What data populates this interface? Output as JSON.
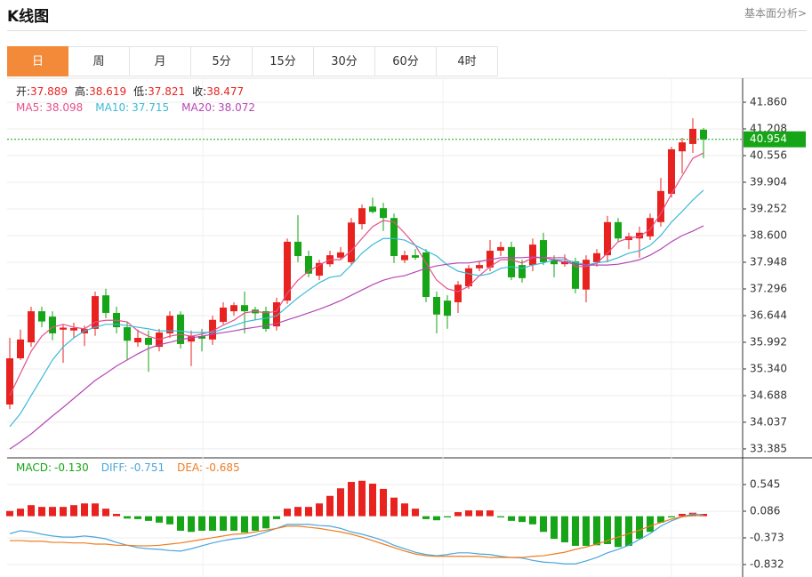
{
  "header": {
    "title": "K线图",
    "link": "基本面分析>"
  },
  "tabs": [
    "日",
    "周",
    "月",
    "5分",
    "15分",
    "30分",
    "60分",
    "4时"
  ],
  "chart_data": [
    {
      "type": "candlestick",
      "readout": [
        {
          "label": "开:",
          "value": "37.889"
        },
        {
          "label": "高:",
          "value": "38.619"
        },
        {
          "label": "低:",
          "value": "37.821"
        },
        {
          "label": "收:",
          "value": "38.477"
        }
      ],
      "up_color": "#e8231f",
      "down_color": "#16a516",
      "open": [
        34.47,
        35.6,
        35.99,
        36.75,
        36.62,
        36.3,
        36.28,
        36.21,
        36.32,
        37.14,
        36.71,
        36.36,
        35.99,
        36.1,
        35.88,
        36.21,
        36.67,
        36.01,
        36.14,
        36.06,
        36.49,
        36.75,
        36.9,
        36.79,
        36.75,
        36.38,
        37.01,
        38.45,
        38.1,
        37.62,
        37.9,
        38.06,
        37.95,
        38.88,
        39.31,
        39.27,
        39.03,
        38.0,
        38.12,
        38.19,
        37.1,
        37.01,
        36.97,
        37.36,
        37.8,
        37.82,
        38.23,
        38.32,
        37.88,
        37.88,
        38.49,
        37.99,
        37.9,
        37.97,
        37.28,
        37.95,
        38.12,
        38.93,
        38.49,
        38.53,
        38.58,
        38.93,
        39.62,
        40.66,
        40.84,
        41.19
      ],
      "high": [
        36.1,
        36.3,
        36.86,
        36.86,
        36.75,
        36.43,
        36.47,
        36.4,
        37.23,
        37.3,
        36.86,
        36.49,
        36.3,
        36.28,
        36.32,
        36.75,
        36.75,
        36.28,
        36.32,
        36.64,
        36.97,
        36.97,
        37.23,
        36.86,
        36.86,
        37.08,
        38.53,
        39.1,
        38.23,
        38.01,
        38.23,
        38.32,
        39.03,
        39.36,
        39.53,
        39.4,
        39.14,
        38.23,
        38.27,
        38.27,
        37.23,
        37.14,
        37.49,
        37.88,
        37.97,
        38.49,
        38.45,
        38.45,
        38.01,
        38.53,
        38.67,
        38.12,
        38.14,
        38.06,
        38.12,
        38.27,
        39.08,
        39.03,
        38.67,
        38.82,
        39.14,
        40.01,
        40.77,
        40.99,
        41.47,
        41.23
      ],
      "low": [
        34.36,
        35.56,
        35.88,
        36.36,
        36.04,
        35.49,
        36.1,
        35.9,
        36.15,
        36.58,
        36.21,
        35.56,
        35.88,
        35.27,
        35.77,
        36.1,
        35.84,
        35.41,
        35.77,
        35.93,
        36.43,
        36.64,
        36.21,
        36.53,
        36.25,
        36.28,
        36.93,
        37.95,
        37.58,
        37.51,
        37.84,
        38.01,
        37.88,
        38.75,
        39.14,
        38.71,
        37.93,
        37.93,
        38.01,
        36.97,
        36.21,
        36.32,
        36.71,
        37.3,
        37.73,
        37.73,
        38.1,
        37.51,
        37.45,
        37.73,
        37.88,
        37.58,
        37.84,
        37.19,
        36.97,
        37.84,
        37.95,
        38.45,
        38.27,
        38.06,
        38.49,
        38.82,
        39.53,
        40.12,
        40.62,
        40.49
      ],
      "close": [
        35.6,
        36.06,
        36.75,
        36.5,
        36.21,
        36.35,
        36.34,
        36.32,
        37.12,
        36.71,
        36.36,
        36.03,
        36.1,
        35.93,
        36.23,
        36.64,
        35.95,
        36.14,
        36.08,
        36.54,
        36.84,
        36.9,
        36.75,
        36.7,
        36.32,
        36.97,
        38.45,
        38.1,
        37.67,
        37.93,
        38.12,
        38.19,
        38.92,
        39.27,
        39.18,
        39.03,
        38.1,
        38.12,
        38.06,
        37.1,
        36.67,
        36.64,
        37.4,
        37.8,
        37.88,
        38.23,
        38.32,
        37.58,
        37.56,
        38.38,
        37.95,
        37.9,
        37.97,
        37.3,
        38.01,
        38.17,
        38.93,
        38.53,
        38.58,
        38.67,
        39.03,
        39.69,
        40.71,
        40.88,
        41.21,
        40.954
      ],
      "series": [
        {
          "name": "MA5:",
          "last": "38.098",
          "color": "#e6508a",
          "values": [
            34.69,
            35.23,
            35.77,
            36.14,
            36.36,
            36.43,
            36.36,
            36.32,
            36.49,
            36.53,
            36.53,
            36.49,
            36.27,
            36.14,
            36.06,
            36.14,
            36.19,
            36.14,
            36.19,
            36.27,
            36.41,
            36.53,
            36.71,
            36.75,
            36.71,
            36.75,
            37.19,
            37.51,
            37.73,
            37.88,
            38.01,
            38.01,
            38.23,
            38.53,
            38.82,
            38.97,
            38.93,
            38.66,
            38.36,
            37.93,
            37.51,
            37.3,
            37.23,
            37.36,
            37.62,
            37.84,
            38.01,
            38.01,
            37.93,
            38.06,
            38.06,
            38.06,
            38.06,
            37.84,
            37.84,
            37.93,
            38.17,
            38.45,
            38.54,
            38.58,
            38.75,
            39.14,
            39.62,
            40.06,
            40.49,
            40.62
          ]
        },
        {
          "name": "MA10:",
          "last": "37.715",
          "color": "#3cb9d8",
          "values": [
            33.93,
            34.25,
            34.69,
            35.12,
            35.56,
            35.88,
            36.1,
            36.27,
            36.36,
            36.43,
            36.43,
            36.4,
            36.36,
            36.32,
            36.27,
            36.27,
            36.27,
            36.23,
            36.23,
            36.23,
            36.32,
            36.4,
            36.49,
            36.54,
            36.58,
            36.64,
            36.86,
            37.08,
            37.27,
            37.45,
            37.58,
            37.62,
            37.88,
            38.17,
            38.38,
            38.53,
            38.53,
            38.49,
            38.36,
            38.23,
            38.1,
            37.88,
            37.73,
            37.67,
            37.62,
            37.67,
            37.8,
            37.84,
            37.8,
            37.88,
            37.93,
            38.01,
            38.01,
            37.95,
            37.88,
            37.93,
            37.97,
            38.06,
            38.17,
            38.23,
            38.36,
            38.6,
            38.93,
            39.19,
            39.47,
            39.71
          ]
        },
        {
          "name": "MA20:",
          "last": "38.072",
          "color": "#b548b5",
          "values": [
            33.38,
            33.56,
            33.75,
            33.97,
            34.19,
            34.4,
            34.62,
            34.84,
            35.06,
            35.23,
            35.41,
            35.56,
            35.71,
            35.84,
            35.93,
            35.99,
            36.06,
            36.1,
            36.14,
            36.19,
            36.23,
            36.27,
            36.32,
            36.36,
            36.4,
            36.45,
            36.54,
            36.62,
            36.71,
            36.8,
            36.9,
            37.01,
            37.14,
            37.27,
            37.4,
            37.51,
            37.58,
            37.62,
            37.71,
            37.8,
            37.86,
            37.9,
            37.93,
            37.93,
            37.97,
            38.01,
            38.06,
            38.06,
            38.06,
            38.08,
            38.06,
            38.01,
            37.95,
            37.9,
            37.88,
            37.88,
            37.88,
            37.9,
            37.95,
            38.01,
            38.12,
            38.27,
            38.45,
            38.6,
            38.71,
            38.84
          ]
        }
      ],
      "last_price": 40.954,
      "last_color": "#16a516",
      "ylim": [
        33.166,
        42.447
      ],
      "yticks": [
        {
          "value": 41.86,
          "label": "41.860"
        },
        {
          "value": 41.208,
          "label": "41.208"
        },
        {
          "value": 40.556,
          "label": "40.556"
        },
        {
          "value": 39.904,
          "label": "39.904"
        },
        {
          "value": 39.252,
          "label": "39.252"
        },
        {
          "value": 38.6,
          "label": "38.600"
        },
        {
          "value": 37.948,
          "label": "37.948"
        },
        {
          "value": 37.296,
          "label": "37.296"
        },
        {
          "value": 36.644,
          "label": "36.644"
        },
        {
          "value": 35.992,
          "label": "35.992"
        },
        {
          "value": 35.34,
          "label": "35.340"
        },
        {
          "value": 34.688,
          "label": "34.688"
        },
        {
          "value": 34.037,
          "label": "34.037"
        },
        {
          "value": 33.385,
          "label": "33.385"
        }
      ],
      "grid": true
    },
    {
      "type": "macd",
      "up_color": "#e8231f",
      "down_color": "#16a516",
      "series": [
        {
          "name": "MACD:",
          "last": "-0.130",
          "kind": "bar",
          "color": "#16a516",
          "values": [
            0.09,
            0.13,
            0.19,
            0.16,
            0.16,
            0.16,
            0.19,
            0.22,
            0.22,
            0.13,
            0.04,
            -0.04,
            -0.05,
            -0.08,
            -0.11,
            -0.14,
            -0.25,
            -0.27,
            -0.25,
            -0.25,
            -0.25,
            -0.25,
            -0.28,
            -0.25,
            -0.21,
            -0.05,
            0.13,
            0.16,
            0.16,
            0.22,
            0.35,
            0.48,
            0.59,
            0.61,
            0.56,
            0.47,
            0.32,
            0.22,
            0.13,
            -0.05,
            -0.07,
            -0.02,
            0.07,
            0.1,
            0.1,
            0.1,
            -0.02,
            -0.08,
            -0.1,
            -0.14,
            -0.27,
            -0.39,
            -0.45,
            -0.51,
            -0.51,
            -0.5,
            -0.48,
            -0.53,
            -0.51,
            -0.39,
            -0.27,
            -0.11,
            -0.02,
            0.04,
            0.06,
            0.04
          ]
        },
        {
          "name": "DIFF:",
          "last": "-0.751",
          "kind": "line",
          "color": "#4aa6dc",
          "values": [
            -0.3,
            -0.25,
            -0.27,
            -0.31,
            -0.34,
            -0.36,
            -0.36,
            -0.34,
            -0.36,
            -0.39,
            -0.45,
            -0.5,
            -0.54,
            -0.56,
            -0.57,
            -0.59,
            -0.6,
            -0.56,
            -0.51,
            -0.46,
            -0.42,
            -0.39,
            -0.37,
            -0.33,
            -0.27,
            -0.21,
            -0.14,
            -0.14,
            -0.14,
            -0.16,
            -0.17,
            -0.21,
            -0.27,
            -0.31,
            -0.36,
            -0.42,
            -0.5,
            -0.56,
            -0.62,
            -0.66,
            -0.68,
            -0.66,
            -0.63,
            -0.63,
            -0.65,
            -0.66,
            -0.69,
            -0.71,
            -0.72,
            -0.76,
            -0.79,
            -0.8,
            -0.82,
            -0.82,
            -0.77,
            -0.71,
            -0.63,
            -0.57,
            -0.5,
            -0.4,
            -0.3,
            -0.17,
            -0.08,
            -0.01,
            0.04,
            0.02
          ]
        },
        {
          "name": "DEA:",
          "last": "-0.685",
          "kind": "line",
          "color": "#ee7d22",
          "values": [
            -0.42,
            -0.42,
            -0.43,
            -0.43,
            -0.45,
            -0.45,
            -0.46,
            -0.46,
            -0.48,
            -0.48,
            -0.5,
            -0.5,
            -0.51,
            -0.51,
            -0.5,
            -0.48,
            -0.46,
            -0.43,
            -0.4,
            -0.37,
            -0.34,
            -0.31,
            -0.3,
            -0.27,
            -0.24,
            -0.21,
            -0.17,
            -0.17,
            -0.19,
            -0.21,
            -0.24,
            -0.27,
            -0.31,
            -0.36,
            -0.42,
            -0.48,
            -0.54,
            -0.6,
            -0.65,
            -0.68,
            -0.69,
            -0.69,
            -0.69,
            -0.69,
            -0.69,
            -0.71,
            -0.71,
            -0.71,
            -0.71,
            -0.69,
            -0.68,
            -0.65,
            -0.62,
            -0.57,
            -0.53,
            -0.48,
            -0.42,
            -0.36,
            -0.3,
            -0.24,
            -0.17,
            -0.11,
            -0.05,
            -0.01,
            0.01,
            0.01
          ]
        }
      ],
      "ylim": [
        -1.046,
        0.958
      ],
      "yticks": [
        {
          "value": 0.545,
          "label": "0.545"
        },
        {
          "value": 0.086,
          "label": "0.086"
        },
        {
          "value": -0.373,
          "label": "-0.373"
        },
        {
          "value": -0.832,
          "label": "-0.832"
        }
      ],
      "grid": true
    }
  ]
}
